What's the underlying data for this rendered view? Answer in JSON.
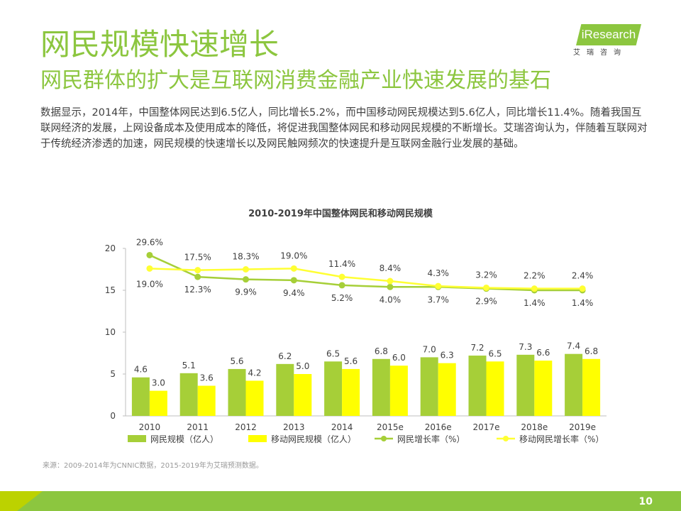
{
  "slide": {
    "title": "网民规模快速增长",
    "subtitle": "网民群体的扩大是互联网消费金融产业快速发展的基石",
    "paragraph": "数据显示，2014年，中国整体网民达到6.5亿人，同比增长5.2%，而中国移动网民规模达到5.6亿人，同比增长11.4%。随着我国互联网经济的发展，上网设备成本及使用成本的降低，将促进我国整体网民和移动网民规模的不断增长。艾瑞咨询认为，伴随着互联网对于传统经济渗透的加速，网民规模的快速增长以及网民触网频次的快速提升是互联网金融行业发展的基础。",
    "source": "来源：2009-2014年为CNNIC数据，2015-2019年为艾瑞预测数据。",
    "page_number": "10"
  },
  "logo": {
    "text": "iResearch",
    "sub": "艾瑞咨询"
  },
  "colors": {
    "brand_green": "#8cc63f",
    "bar_green": "#a6cf38",
    "bar_yellow": "#ffff00",
    "line_green": "#a6cf38",
    "line_yellow": "#ffff33",
    "text": "#404040"
  },
  "chart_data": {
    "type": "bar+line",
    "title": "2010-2019年中国整体网民和移动网民规模",
    "categories": [
      "2010",
      "2011",
      "2012",
      "2013",
      "2014",
      "2015e",
      "2016e",
      "2017e",
      "2018e",
      "2019e"
    ],
    "ylim": [
      0,
      20
    ],
    "yticks": [
      0,
      5,
      10,
      15,
      20
    ],
    "grid": false,
    "legend_position": "bottom",
    "series": [
      {
        "name": "网民规模（亿人）",
        "kind": "bar",
        "values": [
          4.6,
          5.1,
          5.6,
          6.2,
          6.5,
          6.8,
          7.0,
          7.2,
          7.3,
          7.4
        ],
        "labels": [
          "4.6",
          "5.1",
          "5.6",
          "6.2",
          "6.5",
          "6.8",
          "7.0",
          "7.2",
          "7.3",
          "7.4"
        ]
      },
      {
        "name": "移动网民规模（亿人）",
        "kind": "bar",
        "values": [
          3.0,
          3.6,
          4.2,
          5.0,
          5.6,
          6.0,
          6.3,
          6.5,
          6.6,
          6.8
        ],
        "labels": [
          "3.0",
          "3.6",
          "4.2",
          "5.0",
          "5.6",
          "6.0",
          "6.3",
          "6.5",
          "6.6",
          "6.8"
        ]
      },
      {
        "name": "网民增长率（%）",
        "kind": "line",
        "values": [
          19.2,
          16.6,
          16.3,
          16.2,
          15.6,
          15.4,
          15.4,
          15.2,
          15.0,
          15.0
        ],
        "labels": [
          "29.6%",
          "12.3%",
          "9.9%",
          "9.4%",
          "5.2%",
          "4.0%",
          "3.7%",
          "2.9%",
          "1.4%",
          "1.4%"
        ]
      },
      {
        "name": "移动网民增长率（%）",
        "kind": "line",
        "values": [
          17.6,
          17.4,
          17.5,
          17.6,
          16.6,
          16.1,
          15.5,
          15.3,
          15.2,
          15.2
        ],
        "labels": [
          "19.0%",
          "17.5%",
          "18.3%",
          "19.0%",
          "11.4%",
          "8.4%",
          "4.3%",
          "3.2%",
          "2.2%",
          "2.4%"
        ]
      }
    ]
  }
}
